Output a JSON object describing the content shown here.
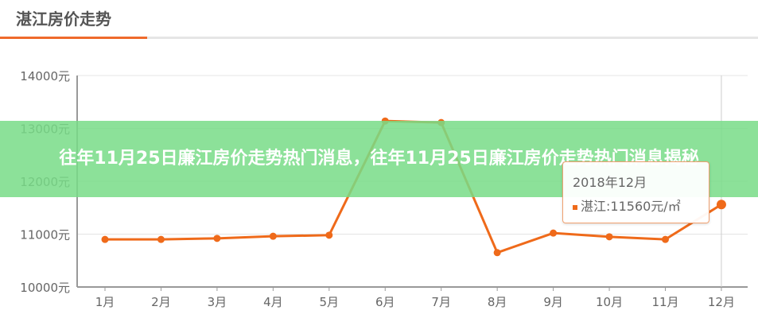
{
  "header": {
    "title": "湛江房价走势"
  },
  "banner": {
    "text": "往年11月25日廉江房价走势热门消息，往年11月25日廉江房价走势热门消息揭秘"
  },
  "tooltip": {
    "date": "2018年12月",
    "series": "湛江",
    "value": "11560元/㎡"
  },
  "chart_data": {
    "type": "line",
    "title": "湛江房价走势",
    "categories": [
      "1月",
      "2月",
      "3月",
      "4月",
      "5月",
      "6月",
      "7月",
      "8月",
      "9月",
      "10月",
      "11月",
      "12月"
    ],
    "series": [
      {
        "values": [
          10900,
          10900,
          10920,
          10960,
          10980,
          13140,
          13110,
          10650,
          11020,
          10950,
          10900,
          11560
        ]
      }
    ],
    "yticks": [
      "10000元",
      "11000元",
      "12000元",
      "13000元",
      "14000元"
    ],
    "ylim": [
      10000,
      14000
    ],
    "grid": true,
    "color": "#ef6a1a"
  }
}
